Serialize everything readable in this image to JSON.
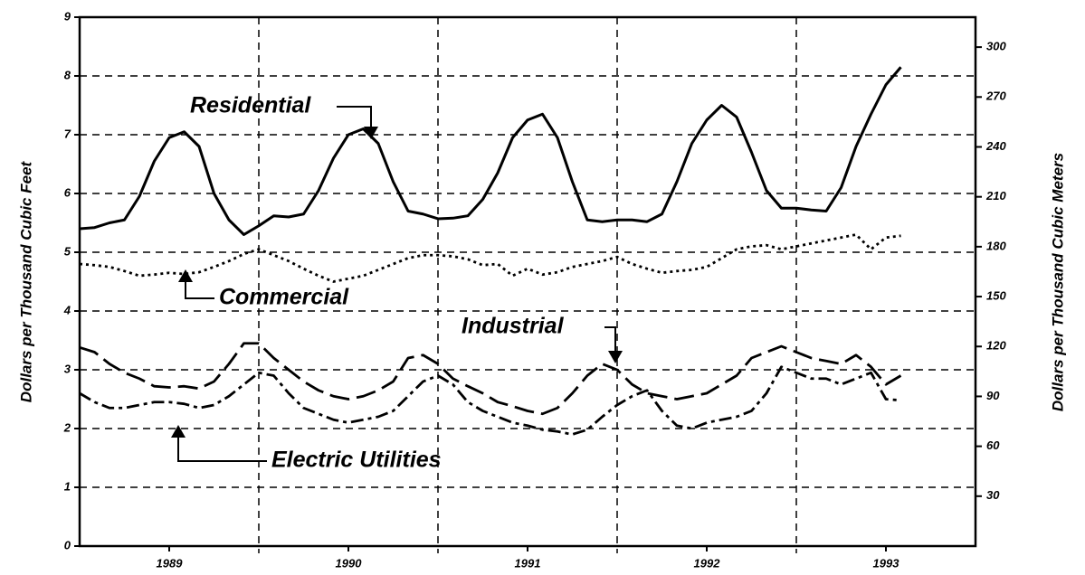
{
  "chart_data": {
    "type": "line",
    "y_label": "Dollars per Thousand Cubic Feet",
    "y2_label": "Dollars per Thousand Cubic Meters",
    "xlim": [
      0,
      60
    ],
    "xticks": [
      {
        "value": 6,
        "label": "1989"
      },
      {
        "value": 18,
        "label": "1990"
      },
      {
        "value": 30,
        "label": "1991"
      },
      {
        "value": 42,
        "label": "1992"
      },
      {
        "value": 54,
        "label": "1993"
      }
    ],
    "xgrid": [
      12,
      24,
      36,
      48
    ],
    "ylim": [
      0,
      9
    ],
    "yticks": [
      0,
      1,
      2,
      3,
      4,
      5,
      6,
      7,
      8,
      9
    ],
    "y2lim": [
      0,
      318
    ],
    "y2ticks": [
      30,
      60,
      90,
      120,
      150,
      180,
      210,
      240,
      270,
      300
    ],
    "grid": true,
    "x": [
      0,
      1,
      2,
      3,
      4,
      5,
      6,
      7,
      8,
      9,
      10,
      11,
      12,
      13,
      14,
      15,
      16,
      17,
      18,
      19,
      20,
      21,
      22,
      23,
      24,
      25,
      26,
      27,
      28,
      29,
      30,
      31,
      32,
      33,
      34,
      35,
      36,
      37,
      38,
      39,
      40,
      41,
      42,
      43,
      44,
      45,
      46,
      47,
      48,
      49,
      50,
      51,
      52,
      53,
      54,
      55
    ],
    "series": [
      {
        "name": "Residential",
        "color": "#000000",
        "style": "solid",
        "values": [
          5.4,
          5.42,
          5.5,
          5.55,
          5.95,
          6.55,
          6.95,
          7.05,
          6.8,
          6.0,
          5.55,
          5.3,
          5.45,
          5.62,
          5.6,
          5.65,
          6.05,
          6.6,
          7.0,
          7.1,
          6.85,
          6.2,
          5.7,
          5.65,
          5.57,
          5.58,
          5.62,
          5.9,
          6.35,
          6.95,
          7.25,
          7.35,
          6.95,
          6.2,
          5.55,
          5.52,
          5.55,
          5.55,
          5.52,
          5.65,
          6.2,
          6.85,
          7.25,
          7.5,
          7.3,
          6.7,
          6.05,
          5.75,
          5.75,
          5.72,
          5.7,
          6.1,
          6.8,
          7.35,
          7.85,
          8.15
        ]
      },
      {
        "name": "Commercial",
        "color": "#000000",
        "style": "dotted",
        "values": [
          4.8,
          4.78,
          4.75,
          4.68,
          4.6,
          4.62,
          4.65,
          4.63,
          4.66,
          4.75,
          4.85,
          4.97,
          5.05,
          4.95,
          4.85,
          4.72,
          4.6,
          4.5,
          4.55,
          4.6,
          4.7,
          4.8,
          4.9,
          4.95,
          4.95,
          4.93,
          4.88,
          4.78,
          4.8,
          4.6,
          4.72,
          4.62,
          4.66,
          4.75,
          4.8,
          4.85,
          4.92,
          4.8,
          4.72,
          4.65,
          4.68,
          4.7,
          4.75,
          4.9,
          5.05,
          5.1,
          5.12,
          5.05,
          5.1,
          5.15,
          5.2,
          5.25,
          5.3,
          5.05,
          5.25,
          5.28
        ]
      },
      {
        "name": "Industrial",
        "color": "#000000",
        "style": "dashed",
        "values": [
          3.38,
          3.3,
          3.1,
          2.95,
          2.85,
          2.72,
          2.7,
          2.72,
          2.68,
          2.8,
          3.1,
          3.45,
          3.45,
          3.2,
          3.0,
          2.8,
          2.65,
          2.55,
          2.5,
          2.55,
          2.65,
          2.8,
          3.2,
          3.25,
          3.1,
          2.85,
          2.72,
          2.6,
          2.45,
          2.38,
          2.3,
          2.25,
          2.35,
          2.6,
          2.9,
          3.1,
          3.0,
          2.75,
          2.6,
          2.55,
          2.5,
          2.55,
          2.6,
          2.75,
          2.9,
          3.2,
          3.3,
          3.4,
          3.3,
          3.2,
          3.15,
          3.1,
          3.25,
          3.05,
          2.75,
          2.9
        ]
      },
      {
        "name": "Electric Utilities",
        "color": "#000000",
        "style": "dashdot",
        "values": [
          2.6,
          2.45,
          2.35,
          2.35,
          2.4,
          2.45,
          2.45,
          2.42,
          2.35,
          2.4,
          2.55,
          2.75,
          2.95,
          2.9,
          2.6,
          2.35,
          2.25,
          2.15,
          2.1,
          2.15,
          2.2,
          2.3,
          2.55,
          2.8,
          2.9,
          2.75,
          2.45,
          2.3,
          2.2,
          2.1,
          2.05,
          1.98,
          1.95,
          1.9,
          1.98,
          2.2,
          2.4,
          2.55,
          2.65,
          2.3,
          2.05,
          2.0,
          2.1,
          2.15,
          2.2,
          2.3,
          2.6,
          3.05,
          2.95,
          2.85,
          2.85,
          2.75,
          2.85,
          2.95,
          2.5,
          2.48
        ]
      }
    ]
  }
}
